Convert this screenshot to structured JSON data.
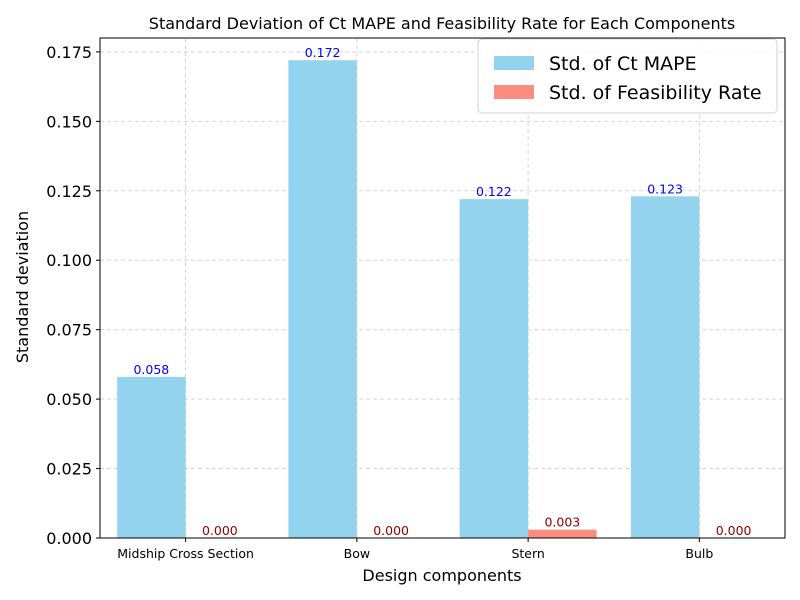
{
  "chart_data": {
    "type": "bar",
    "title": "Standard Deviation of Ct MAPE and Feasibility Rate for Each Components",
    "xlabel": "Design components",
    "ylabel": "Standard deviation",
    "categories": [
      "Midship Cross Section",
      "Bow",
      "Stern",
      "Bulb"
    ],
    "series": [
      {
        "name": "Std. of Ct MAPE",
        "values": [
          0.058,
          0.172,
          0.122,
          0.123
        ],
        "labels": [
          "0.058",
          "0.172",
          "0.122",
          "0.123"
        ],
        "color": "#87ceeb",
        "label_color": "#0000ff"
      },
      {
        "name": "Std. of Feasibility Rate",
        "values": [
          0.0,
          0.0,
          0.003,
          0.0
        ],
        "labels": [
          "0.000",
          "0.000",
          "0.003",
          "0.000"
        ],
        "color": "#fa8072",
        "label_color": "#8b0000"
      }
    ],
    "ylim": [
      0,
      0.18
    ],
    "yticks": [
      0.0,
      0.025,
      0.05,
      0.075,
      0.1,
      0.125,
      0.15,
      0.175
    ],
    "ytick_labels": [
      "0.000",
      "0.025",
      "0.050",
      "0.075",
      "0.100",
      "0.125",
      "0.150",
      "0.175"
    ],
    "grid": true,
    "legend_position": "top-right"
  }
}
